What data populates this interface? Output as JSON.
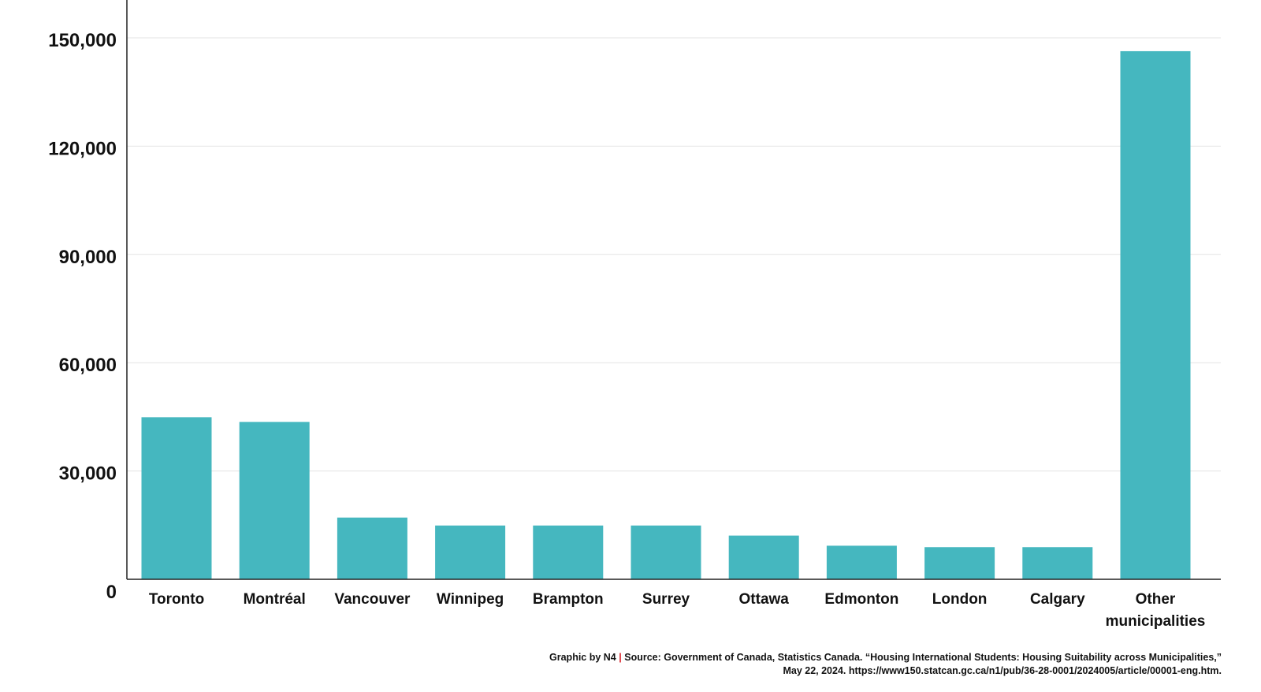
{
  "chart_data": {
    "type": "bar",
    "categories": [
      "Toronto",
      "Montréal",
      "Vancouver",
      "Winnipeg",
      "Brampton",
      "Surrey",
      "Ottawa",
      "Edmonton",
      "London",
      "Calgary",
      "Other municipalities"
    ],
    "category_lines": [
      [
        "Toronto"
      ],
      [
        "Montréal"
      ],
      [
        "Vancouver"
      ],
      [
        "Winnipeg"
      ],
      [
        "Brampton"
      ],
      [
        "Surrey"
      ],
      [
        "Ottawa"
      ],
      [
        "Edmonton"
      ],
      [
        "London"
      ],
      [
        "Calgary"
      ],
      [
        "Other",
        "municipalities"
      ]
    ],
    "values": [
      44900,
      43600,
      17100,
      14900,
      14900,
      14900,
      12100,
      9300,
      8900,
      8900,
      146300
    ],
    "ylim": [
      0,
      150000
    ],
    "yticks": [
      0,
      30000,
      60000,
      90000,
      120000,
      150000
    ],
    "ytick_labels": [
      "0",
      "30,000",
      "60,000",
      "90,000",
      "120,000",
      "150,000"
    ],
    "grid": true,
    "bar_color": "#45b7bf"
  },
  "footer": {
    "credit": "Graphic by N4",
    "separator": "|",
    "source_line1": "Source: Government of Canada, Statistics Canada. “Housing International Students: Housing Suitability across Municipalities,”",
    "source_line2": "May 22, 2024. https://www150.statcan.gc.ca/n1/pub/36-28-0001/2024005/article/00001-eng.htm."
  }
}
